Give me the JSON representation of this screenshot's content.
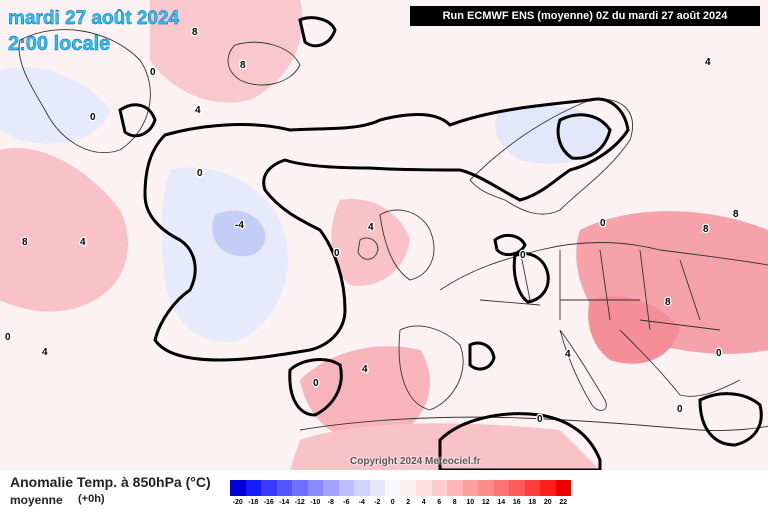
{
  "map": {
    "date_title": "mardi 27 août 2024",
    "time_title": "2:00 locale",
    "run_banner": "Run ECMWF ENS (moyenne) 0Z du mardi 27 août 2024",
    "copyright": "Copyright 2024 Meteociel.fr",
    "variable_title": "Anomalie Temp. à 850hPa (°C)",
    "mean_label": "moyenne",
    "step_label": "(+0h)",
    "contour_labels": [
      "-4",
      "0",
      "4",
      "8"
    ],
    "colors": {
      "warm_light": "#fde4e6",
      "warm_mid": "#f9b7bd",
      "warm_strong": "#f48e97",
      "cool_light": "#e0e6fa",
      "cool_mid": "#c3cdf5",
      "background": "#ffffff"
    }
  },
  "legend": {
    "ticks": [
      "-20",
      "-18",
      "-16",
      "-14",
      "-12",
      "-10",
      "-8",
      "-6",
      "-4",
      "-2",
      "0",
      "2",
      "4",
      "6",
      "8",
      "10",
      "12",
      "14",
      "16",
      "18",
      "20",
      "22"
    ],
    "colors": [
      "#0000d6",
      "#1a1aff",
      "#3a3aff",
      "#5656ff",
      "#7070ff",
      "#8a8aff",
      "#a3a3ff",
      "#bcbcff",
      "#d2d2ff",
      "#e6e6ff",
      "#f8f8ff",
      "#fff0f0",
      "#ffe0e0",
      "#ffcccc",
      "#ffb6b6",
      "#ffa0a0",
      "#ff8a8a",
      "#ff7272",
      "#ff5a5a",
      "#ff3e3e",
      "#ff1e1e",
      "#ee0000"
    ]
  }
}
